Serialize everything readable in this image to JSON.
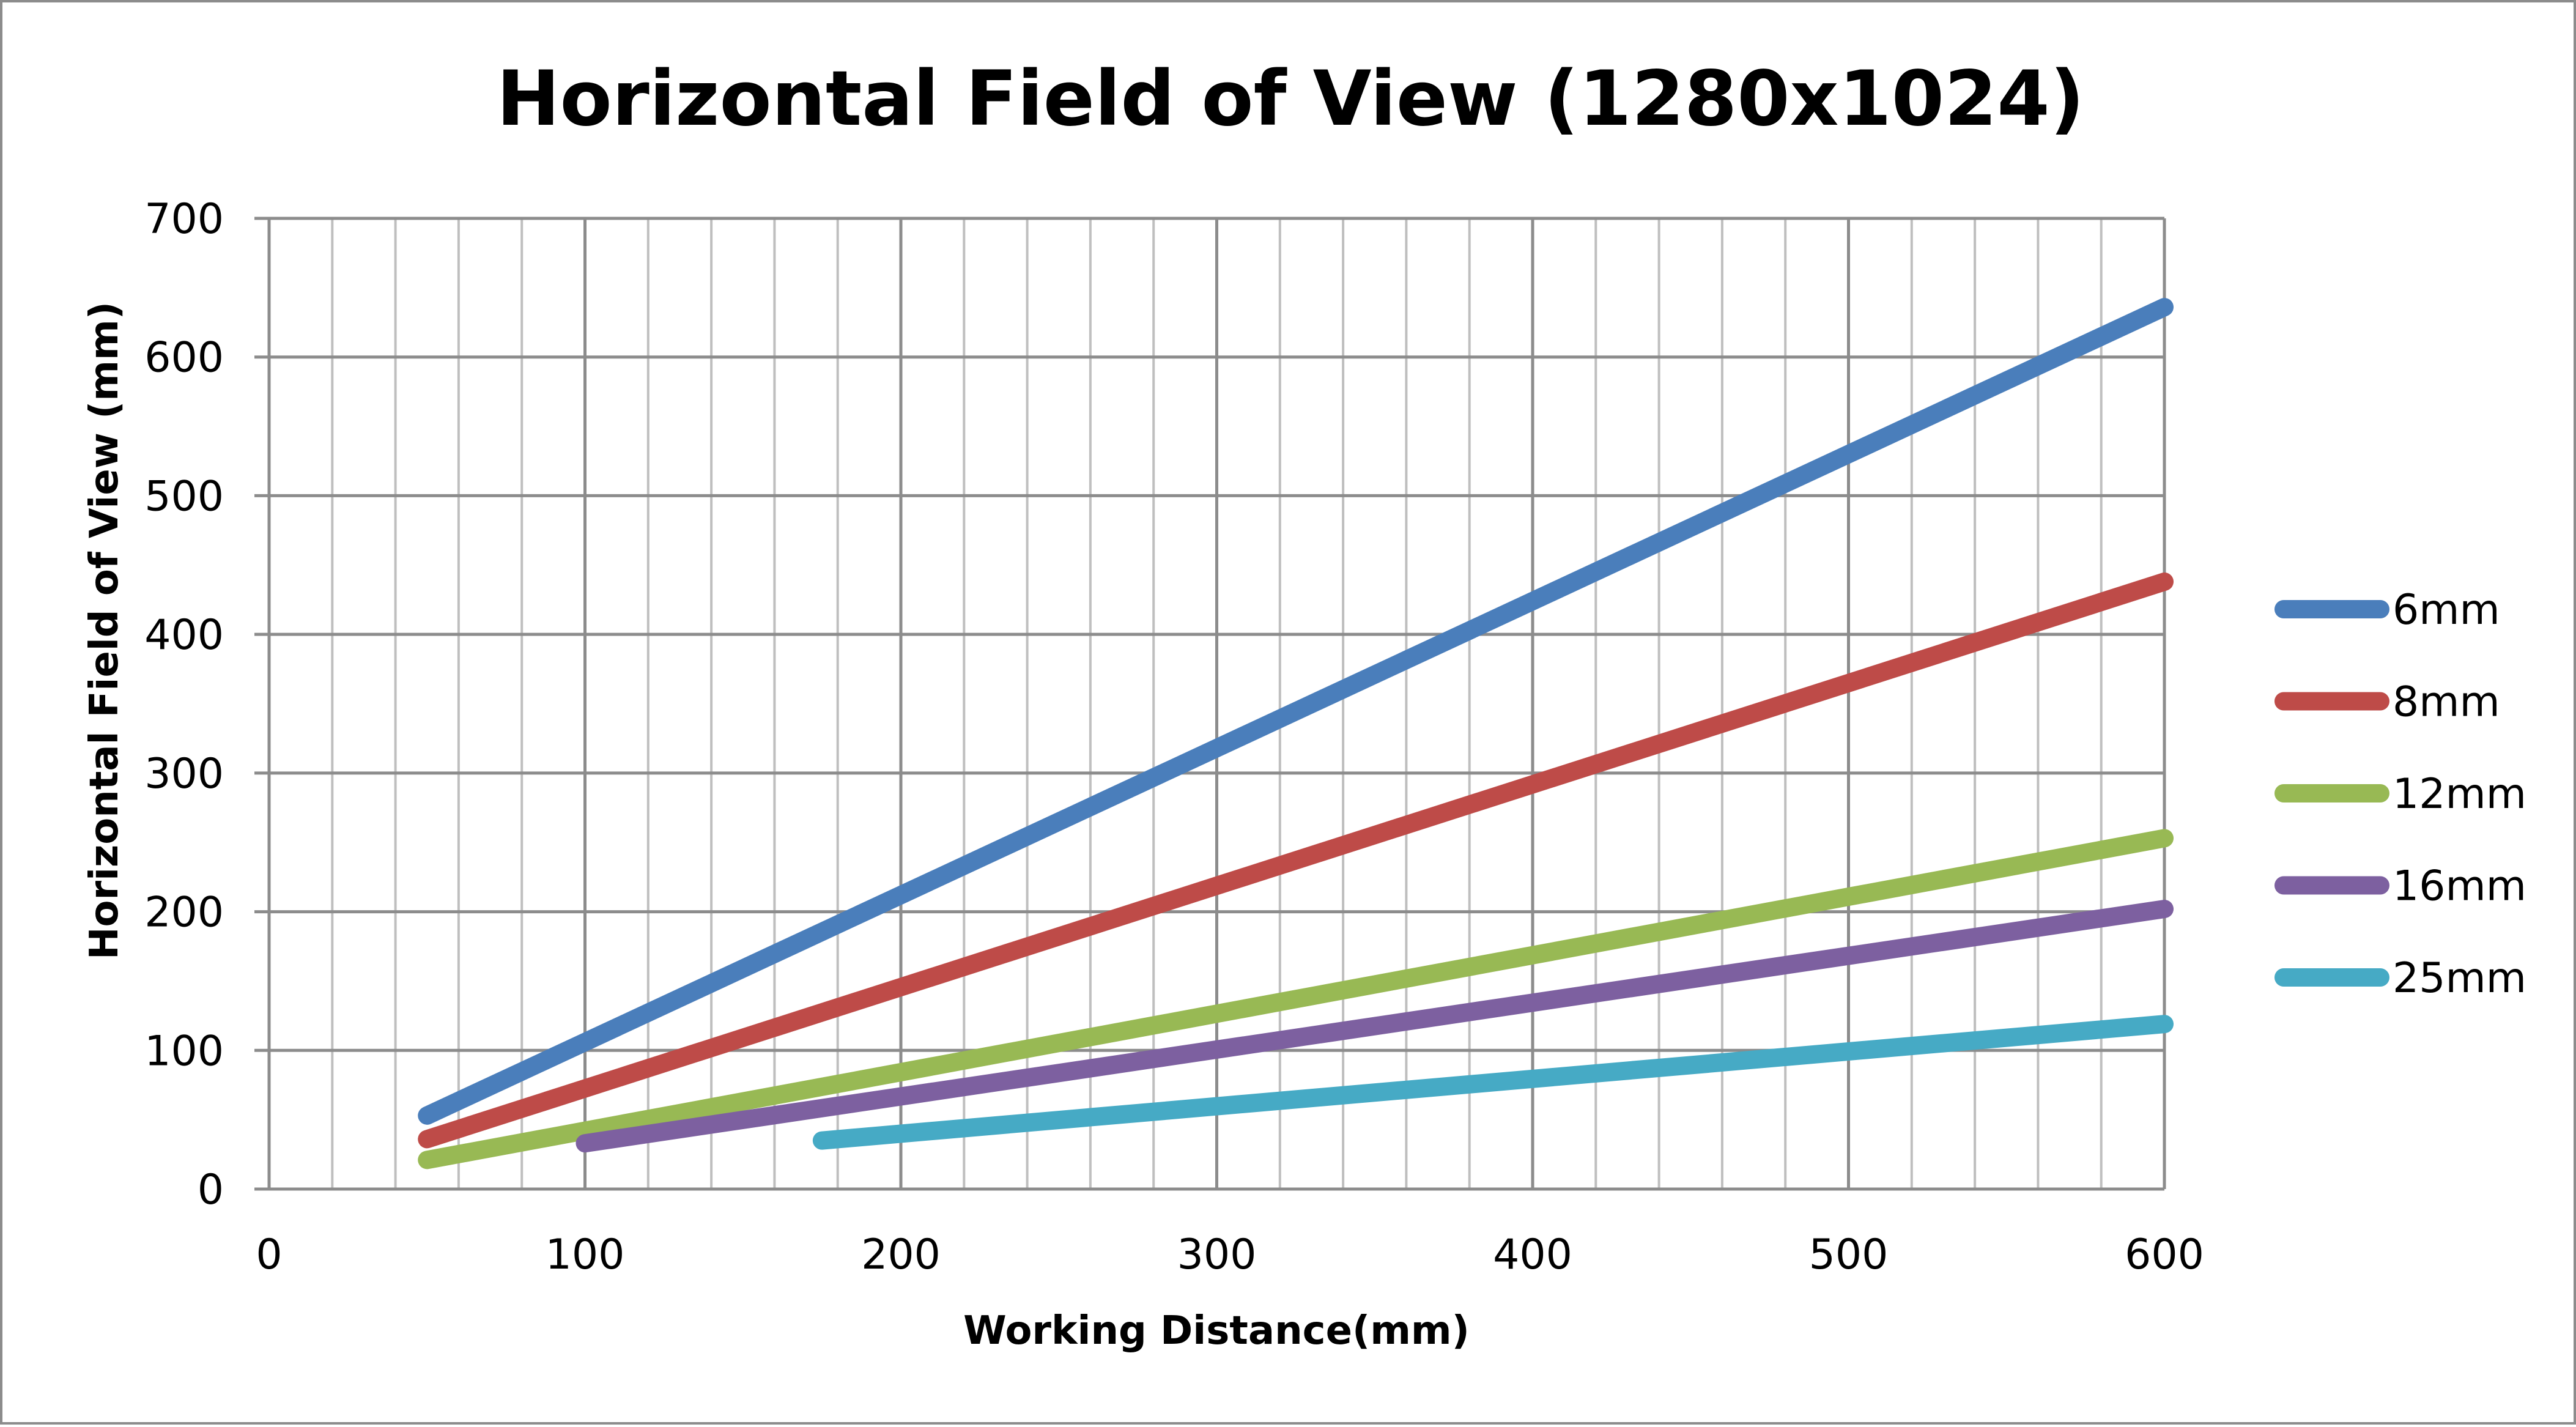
{
  "chart_data": {
    "type": "line",
    "title": "Horizontal Field of View (1280x1024)",
    "xlabel": "Working Distance(mm)",
    "ylabel": "Horizontal Field of View (mm)",
    "xlim": [
      0,
      600
    ],
    "ylim": [
      0,
      700
    ],
    "x_ticks": [
      0,
      100,
      200,
      300,
      400,
      500,
      600
    ],
    "y_ticks": [
      0,
      100,
      200,
      300,
      400,
      500,
      600,
      700
    ],
    "x_minor_step": 20,
    "grid": true,
    "legend_position": "right",
    "series": [
      {
        "name": "6mm",
        "color": "#4a7ebb",
        "x": [
          50,
          600
        ],
        "y": [
          53,
          636
        ]
      },
      {
        "name": "8mm",
        "color": "#be4b48",
        "x": [
          50,
          600
        ],
        "y": [
          36,
          438
        ]
      },
      {
        "name": "12mm",
        "color": "#98b954",
        "x": [
          50,
          600
        ],
        "y": [
          21,
          253
        ]
      },
      {
        "name": "16mm",
        "color": "#7d60a0",
        "x": [
          100,
          600
        ],
        "y": [
          33,
          202
        ]
      },
      {
        "name": "25mm",
        "color": "#46aac5",
        "x": [
          175,
          600
        ],
        "y": [
          35,
          119
        ]
      }
    ]
  }
}
